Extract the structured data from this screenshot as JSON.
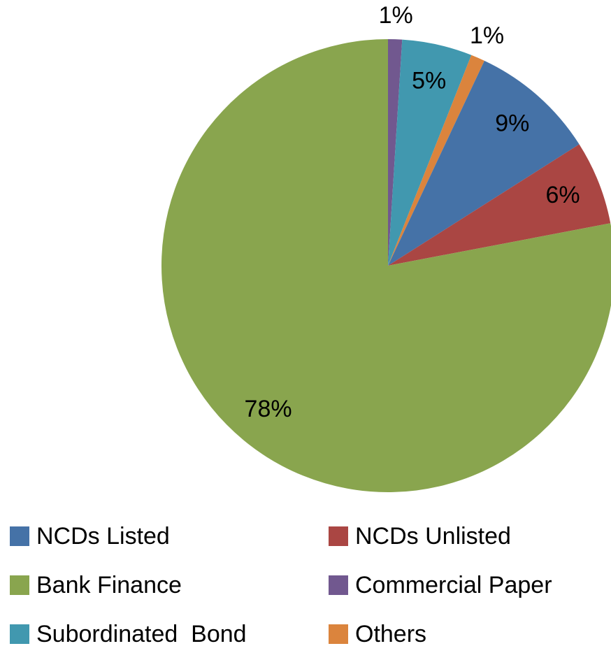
{
  "chart_data": {
    "type": "pie",
    "categories": [
      "NCDs Listed",
      "NCDs Unlisted",
      "Bank Finance",
      "Commercial Paper",
      "Subordinated  Bond",
      "Others"
    ],
    "values": [
      9,
      6,
      78,
      1,
      5,
      1
    ],
    "value_labels": [
      "9%",
      "6%",
      "78%",
      "1%",
      "5%",
      "1%"
    ],
    "colors": [
      "#4572a7",
      "#aa4643",
      "#89a54e",
      "#71588f",
      "#4198af",
      "#db843d"
    ],
    "legend": "bottom"
  }
}
